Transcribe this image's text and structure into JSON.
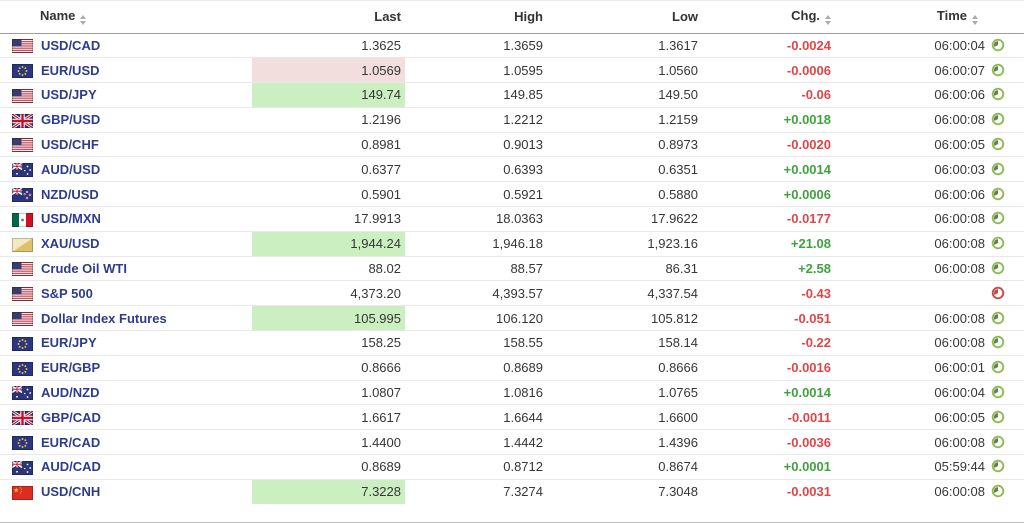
{
  "table": {
    "columns": [
      {
        "label": "Name",
        "sortable": true
      },
      {
        "label": "Last",
        "sortable": false
      },
      {
        "label": "High",
        "sortable": false
      },
      {
        "label": "Low",
        "sortable": false
      },
      {
        "label": "Chg.",
        "sortable": true
      },
      {
        "label": "Time",
        "sortable": true
      }
    ],
    "rows": [
      {
        "flag": "us",
        "name": "USD/CAD",
        "last": "1.3625",
        "high": "1.3659",
        "low": "1.3617",
        "chg": "-0.0024",
        "chg_dir": "down",
        "time": "06:00:04",
        "clock": "green",
        "last_highlight": "none"
      },
      {
        "flag": "eu",
        "name": "EUR/USD",
        "last": "1.0569",
        "high": "1.0595",
        "low": "1.0560",
        "chg": "-0.0006",
        "chg_dir": "down",
        "time": "06:00:07",
        "clock": "green",
        "last_highlight": "down"
      },
      {
        "flag": "us",
        "name": "USD/JPY",
        "last": "149.74",
        "high": "149.85",
        "low": "149.50",
        "chg": "-0.06",
        "chg_dir": "down",
        "time": "06:00:06",
        "clock": "green",
        "last_highlight": "up"
      },
      {
        "flag": "gb",
        "name": "GBP/USD",
        "last": "1.2196",
        "high": "1.2212",
        "low": "1.2159",
        "chg": "+0.0018",
        "chg_dir": "up",
        "time": "06:00:08",
        "clock": "green",
        "last_highlight": "none"
      },
      {
        "flag": "us",
        "name": "USD/CHF",
        "last": "0.8981",
        "high": "0.9013",
        "low": "0.8973",
        "chg": "-0.0020",
        "chg_dir": "down",
        "time": "06:00:05",
        "clock": "green",
        "last_highlight": "none"
      },
      {
        "flag": "au",
        "name": "AUD/USD",
        "last": "0.6377",
        "high": "0.6393",
        "low": "0.6351",
        "chg": "+0.0014",
        "chg_dir": "up",
        "time": "06:00:03",
        "clock": "green",
        "last_highlight": "none"
      },
      {
        "flag": "nz",
        "name": "NZD/USD",
        "last": "0.5901",
        "high": "0.5921",
        "low": "0.5880",
        "chg": "+0.0006",
        "chg_dir": "up",
        "time": "06:00:06",
        "clock": "green",
        "last_highlight": "none"
      },
      {
        "flag": "mx",
        "name": "USD/MXN",
        "last": "17.9913",
        "high": "18.0363",
        "low": "17.9622",
        "chg": "-0.0177",
        "chg_dir": "down",
        "time": "06:00:08",
        "clock": "green",
        "last_highlight": "none"
      },
      {
        "flag": "xau",
        "name": "XAU/USD",
        "last": "1,944.24",
        "high": "1,946.18",
        "low": "1,923.16",
        "chg": "+21.08",
        "chg_dir": "up",
        "time": "06:00:08",
        "clock": "green",
        "last_highlight": "up"
      },
      {
        "flag": "us",
        "name": "Crude Oil WTI",
        "last": "88.02",
        "high": "88.57",
        "low": "86.31",
        "chg": "+2.58",
        "chg_dir": "up",
        "time": "06:00:08",
        "clock": "green",
        "last_highlight": "none"
      },
      {
        "flag": "us",
        "name": "S&P 500",
        "last": "4,373.20",
        "high": "4,393.57",
        "low": "4,337.54",
        "chg": "-0.43",
        "chg_dir": "down",
        "time": "",
        "clock": "red",
        "last_highlight": "none"
      },
      {
        "flag": "us",
        "name": "Dollar Index Futures",
        "last": "105.995",
        "high": "106.120",
        "low": "105.812",
        "chg": "-0.051",
        "chg_dir": "down",
        "time": "06:00:08",
        "clock": "green",
        "last_highlight": "up"
      },
      {
        "flag": "eu",
        "name": "EUR/JPY",
        "last": "158.25",
        "high": "158.55",
        "low": "158.14",
        "chg": "-0.22",
        "chg_dir": "down",
        "time": "06:00:08",
        "clock": "green",
        "last_highlight": "none"
      },
      {
        "flag": "eu",
        "name": "EUR/GBP",
        "last": "0.8666",
        "high": "0.8689",
        "low": "0.8666",
        "chg": "-0.0016",
        "chg_dir": "down",
        "time": "06:00:01",
        "clock": "green",
        "last_highlight": "none"
      },
      {
        "flag": "au",
        "name": "AUD/NZD",
        "last": "1.0807",
        "high": "1.0816",
        "low": "1.0765",
        "chg": "+0.0014",
        "chg_dir": "up",
        "time": "06:00:04",
        "clock": "green",
        "last_highlight": "none"
      },
      {
        "flag": "gb",
        "name": "GBP/CAD",
        "last": "1.6617",
        "high": "1.6644",
        "low": "1.6600",
        "chg": "-0.0011",
        "chg_dir": "down",
        "time": "06:00:05",
        "clock": "green",
        "last_highlight": "none"
      },
      {
        "flag": "eu",
        "name": "EUR/CAD",
        "last": "1.4400",
        "high": "1.4442",
        "low": "1.4396",
        "chg": "-0.0036",
        "chg_dir": "down",
        "time": "06:00:08",
        "clock": "green",
        "last_highlight": "none"
      },
      {
        "flag": "au",
        "name": "AUD/CAD",
        "last": "0.8689",
        "high": "0.8712",
        "low": "0.8674",
        "chg": "+0.0001",
        "chg_dir": "up",
        "time": "05:59:44",
        "clock": "green",
        "last_highlight": "none"
      },
      {
        "flag": "cn",
        "name": "USD/CNH",
        "last": "7.3228",
        "high": "7.3274",
        "low": "7.3048",
        "chg": "-0.0031",
        "chg_dir": "down",
        "time": "06:00:08",
        "clock": "green",
        "last_highlight": "up"
      }
    ]
  },
  "colors": {
    "pair_link": "#2d3c8e",
    "chg_up": "#3fa23f",
    "chg_down": "#e04646",
    "last_highlight_up": "#ccefc2",
    "last_highlight_down": "#f3dede",
    "clock_live": "#8cbb57",
    "clock_closed": "#c94a44"
  },
  "icons": {
    "sort": "sort-arrows-icon",
    "clock_live": "clock-green-icon",
    "clock_closed": "clock-red-icon",
    "flags": [
      "us-flag-icon",
      "eu-flag-icon",
      "gb-flag-icon",
      "au-flag-icon",
      "nz-flag-icon",
      "mx-flag-icon",
      "gold-flag-icon",
      "cn-flag-icon"
    ]
  }
}
